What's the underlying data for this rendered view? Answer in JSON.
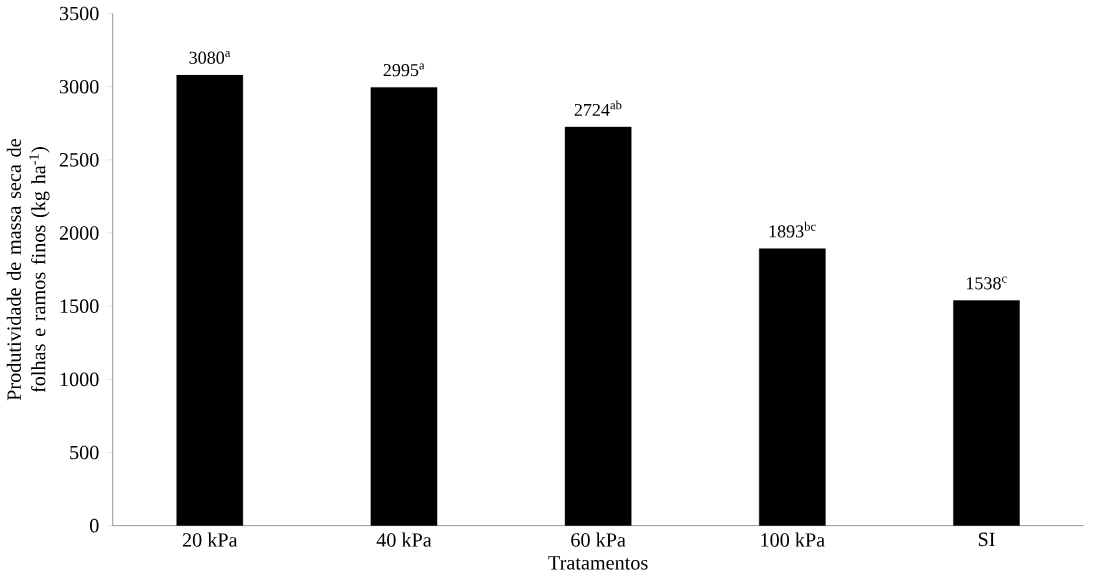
{
  "chart_data": {
    "type": "bar",
    "xlabel": "Tratamentos",
    "ylabel": "Produtividade de massa seca  de folhas e ramos finos (kg ha$^{-1}$)",
    "categories": [
      "20 kPa",
      "40 kPa",
      "60 kPa",
      "100 kPa",
      "SI"
    ],
    "values": [
      3080,
      2995,
      2724,
      1893,
      1538
    ],
    "value_labels": [
      "3080$^{a}$",
      "2995$^{a}$",
      "2724$^{ab}$",
      "1893$^{bc}$",
      "1538$^{c}$"
    ],
    "color": "#000000",
    "ylim": [
      0,
      3500
    ],
    "yticks": [
      0,
      500,
      1000,
      1500,
      2000,
      2500,
      3000,
      3500
    ],
    "grid": false
  }
}
